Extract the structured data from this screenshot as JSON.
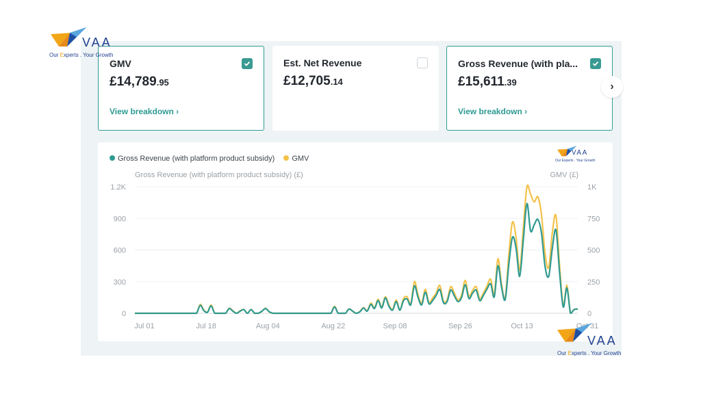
{
  "brand": {
    "name": "VAA",
    "tagline_prefix": "Our ",
    "tagline_e": "E",
    "tagline_rest": "xperts . Your Growth",
    "tagline_full": "Our Experts . Your Growth"
  },
  "cards": [
    {
      "title": "GMV",
      "currency": "£",
      "int": "14,789",
      "dec": ".95",
      "checked": true,
      "link": "View breakdown ›"
    },
    {
      "title": "Est. Net Revenue",
      "currency": "£",
      "int": "12,705",
      "dec": ".14",
      "checked": false,
      "link": ""
    },
    {
      "title": "Gross Revenue (with pla...",
      "currency": "£",
      "int": "15,611",
      "dec": ".39",
      "checked": true,
      "link": "View breakdown ›"
    }
  ],
  "next_button": "›",
  "colors": {
    "teal": "#2f9a92",
    "gold": "#f3c24a",
    "accent": "#2e9b93"
  },
  "chart_data": {
    "type": "line",
    "legend": [
      "Gross Revenue (with platform product subsidy)",
      "GMV"
    ],
    "ylabel_left": "Gross Revenue (with platform product subsidy) (£)",
    "ylabel_right": "GMV (£)",
    "left_ticks": [
      "0",
      "300",
      "600",
      "900",
      "1.2K"
    ],
    "right_ticks": [
      "0",
      "250",
      "500",
      "750",
      "1K"
    ],
    "left_ylim": [
      0,
      1200
    ],
    "right_ylim": [
      0,
      1000
    ],
    "x_ticks": [
      {
        "label": "Jul 01",
        "index": 0
      },
      {
        "label": "Jul 18",
        "index": 17
      },
      {
        "label": "Aug 04",
        "index": 34
      },
      {
        "label": "Aug 22",
        "index": 52
      },
      {
        "label": "Sep 08",
        "index": 69
      },
      {
        "label": "Sep 26",
        "index": 87
      },
      {
        "label": "Oct 13",
        "index": 104
      },
      {
        "label": "Oct 31",
        "index": 122
      }
    ],
    "grid": true,
    "series": [
      {
        "name": "Gross Revenue (with platform product subsidy)",
        "axis": "left",
        "color": "#2f9a92",
        "values": [
          0,
          0,
          0,
          0,
          0,
          0,
          0,
          0,
          0,
          0,
          0,
          0,
          0,
          0,
          0,
          0,
          0,
          0,
          75,
          25,
          10,
          70,
          0,
          0,
          0,
          0,
          45,
          20,
          0,
          20,
          35,
          0,
          35,
          0,
          0,
          20,
          45,
          15,
          0,
          0,
          0,
          0,
          0,
          0,
          0,
          0,
          0,
          0,
          0,
          0,
          0,
          0,
          0,
          0,
          0,
          60,
          0,
          0,
          0,
          40,
          20,
          0,
          15,
          50,
          20,
          85,
          45,
          120,
          50,
          145,
          65,
          30,
          110,
          30,
          120,
          135,
          80,
          260,
          150,
          80,
          200,
          90,
          120,
          170,
          225,
          100,
          110,
          220,
          165,
          110,
          150,
          270,
          140,
          190,
          220,
          120,
          170,
          230,
          280,
          155,
          450,
          250,
          130,
          460,
          720,
          620,
          350,
          700,
          1040,
          780,
          840,
          890,
          760,
          440,
          350,
          620,
          790,
          380,
          60,
          240,
          0,
          35,
          40
        ]
      },
      {
        "name": "GMV",
        "axis": "right",
        "color": "#f3c24a",
        "values": [
          0,
          0,
          0,
          0,
          0,
          0,
          0,
          0,
          0,
          0,
          0,
          0,
          0,
          0,
          0,
          0,
          0,
          0,
          70,
          25,
          10,
          65,
          0,
          0,
          0,
          0,
          40,
          20,
          0,
          20,
          30,
          0,
          30,
          0,
          0,
          15,
          40,
          10,
          0,
          0,
          0,
          0,
          0,
          0,
          0,
          0,
          0,
          0,
          0,
          0,
          0,
          0,
          0,
          0,
          0,
          55,
          0,
          0,
          0,
          35,
          15,
          0,
          15,
          45,
          20,
          80,
          45,
          110,
          50,
          130,
          65,
          30,
          105,
          25,
          115,
          130,
          75,
          250,
          145,
          80,
          190,
          85,
          120,
          160,
          220,
          95,
          105,
          210,
          160,
          105,
          145,
          260,
          135,
          180,
          210,
          115,
          160,
          215,
          270,
          150,
          430,
          230,
          120,
          460,
          720,
          600,
          340,
          680,
          1000,
          940,
          880,
          920,
          780,
          470,
          360,
          640,
          770,
          370,
          60,
          220,
          0,
          30,
          35
        ]
      }
    ]
  }
}
